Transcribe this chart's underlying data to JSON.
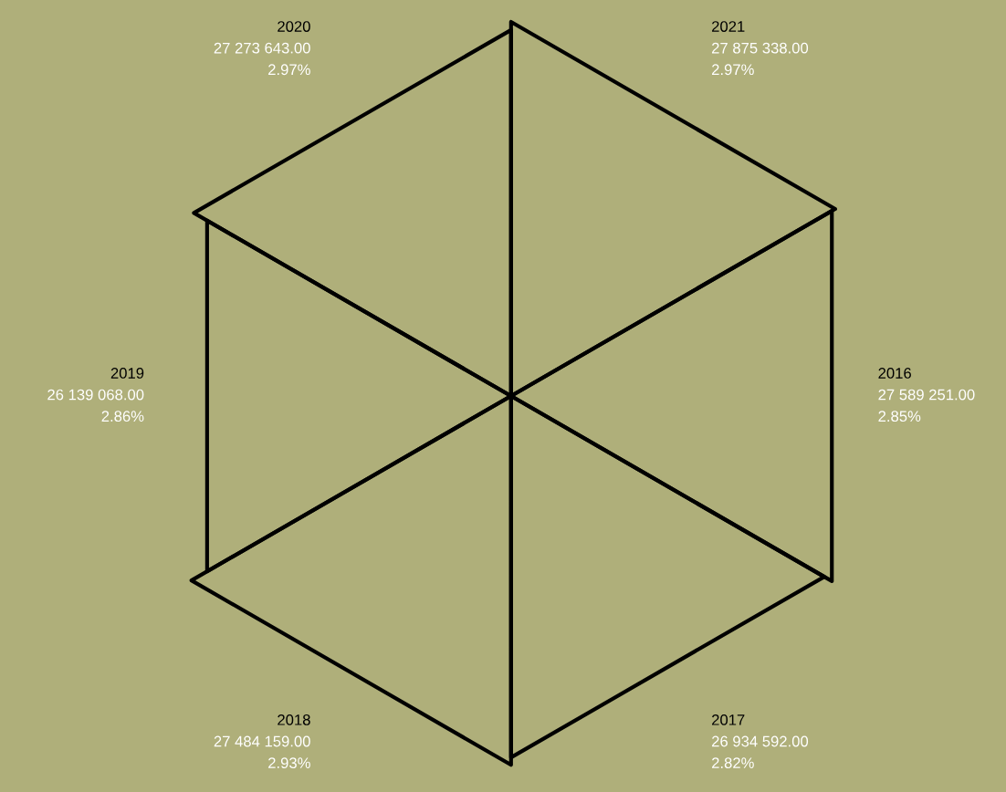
{
  "chart_data": {
    "type": "other",
    "categories": [
      "2016",
      "2017",
      "2018",
      "2019",
      "2020",
      "2021"
    ],
    "series": [
      {
        "color": "#000000",
        "values": [
          27589251.0,
          26934592.0,
          27484159.0,
          26139068.0,
          27273643.0,
          27875338.0
        ],
        "value_labels": [
          "27 589 251.00",
          "26 934 592.00",
          "27 484 159.00",
          "26 139 068.00",
          "27 273 643.00",
          "27 875 338.00"
        ]
      }
    ],
    "annotations": [
      "2.85%",
      "2.82%",
      "2.93%",
      "2.86%",
      "2.97%",
      "2.97%"
    ]
  }
}
